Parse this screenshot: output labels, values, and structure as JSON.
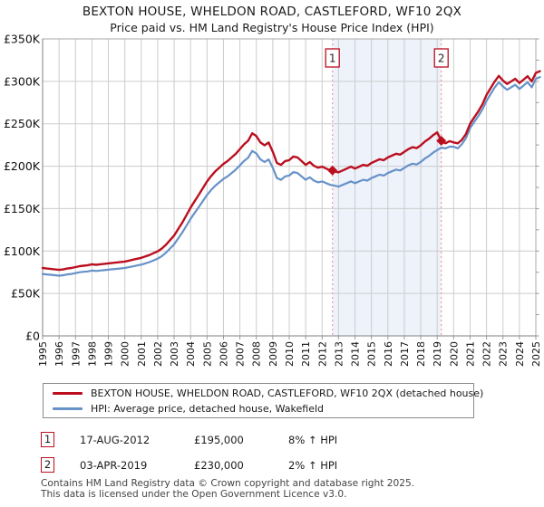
{
  "title": "BEXTON HOUSE, WHELDON ROAD, CASTLEFORD, WF10 2QX",
  "subtitle": "Price paid vs. HM Land Registry's House Price Index (HPI)",
  "colors": {
    "price_line": "#bb0f1f",
    "hpi_line": "#6692c8",
    "marker_dotted_line": "#f59a9a",
    "marker_box_border": "#bb0f1f",
    "shaded_region": "#edf2fb",
    "gridline": "#cccccc",
    "plot_border": "#aaaaaa",
    "axis_line": "#808080",
    "footer_text": "#444444"
  },
  "chart_data": {
    "type": "line",
    "title": "BEXTON HOUSE, WHELDON ROAD, CASTLEFORD, WF10 2QX",
    "subtitle": "Price paid vs. HM Land Registry's House Price Index (HPI)",
    "xlabel": "",
    "ylabel": "",
    "x_start": 1995,
    "x_step": 0.25,
    "x_years": [
      1995,
      1996,
      1997,
      1998,
      1999,
      2000,
      2001,
      2002,
      2003,
      2004,
      2005,
      2006,
      2007,
      2008,
      2009,
      2010,
      2011,
      2012,
      2013,
      2014,
      2015,
      2016,
      2017,
      2018,
      2019,
      2020,
      2021,
      2022,
      2023,
      2024,
      2025
    ],
    "xlim": [
      1995,
      2025
    ],
    "y_axis": {
      "min": 0,
      "max": 350000,
      "tick_step": 50000,
      "minor_tick_step": 25000,
      "tick_labels": [
        "£0",
        "£50K",
        "£100K",
        "£150K",
        "£200K",
        "£250K",
        "£300K",
        "£350K"
      ]
    },
    "grid": true,
    "legend_position": "bottom",
    "values_unit": "GBP thousands",
    "series": [
      {
        "name": "HPI: Average price, detached house, Wakefield",
        "color": "#6692c8",
        "values": [
          73,
          72.5,
          72,
          71.5,
          71,
          71.5,
          72.5,
          73,
          74,
          75,
          75.5,
          76,
          77,
          76.5,
          77,
          77.5,
          78,
          78.5,
          79,
          79.5,
          80,
          81,
          82,
          83,
          84,
          85.5,
          87,
          89,
          91,
          94,
          98,
          103,
          108,
          115,
          122,
          130,
          138,
          145,
          152,
          159,
          166,
          172,
          177,
          181,
          185,
          188,
          192,
          196,
          201,
          206,
          210,
          218,
          215,
          208,
          205,
          208,
          198,
          186,
          184,
          188,
          189,
          193,
          192,
          188,
          184,
          187,
          183,
          181,
          182,
          180,
          178,
          177,
          176,
          178,
          180,
          182,
          180,
          182,
          184,
          183,
          186,
          188,
          190,
          189,
          192,
          194,
          196,
          195,
          198,
          201,
          203,
          202,
          205,
          209,
          212,
          216,
          219,
          222,
          221,
          223,
          223,
          221,
          226,
          233,
          245,
          252,
          259,
          267,
          277,
          285,
          293,
          299,
          294,
          290,
          293,
          296,
          291,
          295,
          299,
          293,
          303,
          305
        ]
      },
      {
        "name": "BEXTON HOUSE, WHELDON ROAD, CASTLEFORD, WF10 2QX (detached house)",
        "color": "#bb0f1f",
        "values": [
          80,
          79.4,
          78.9,
          78.3,
          77.8,
          78.3,
          79.4,
          80,
          81.1,
          82.2,
          82.7,
          83.3,
          84.4,
          83.8,
          84.4,
          84.9,
          85.5,
          86,
          86.5,
          87.1,
          87.6,
          88.7,
          89.8,
          90.9,
          92,
          93.7,
          95.3,
          97.5,
          99.7,
          103,
          107.4,
          112.8,
          118.3,
          126,
          133.6,
          142.4,
          151.2,
          158.8,
          166.5,
          174.2,
          181.9,
          188.4,
          193.9,
          198.3,
          202.7,
          206,
          210.3,
          214.7,
          220.2,
          225.7,
          230.1,
          238.8,
          235.5,
          227.9,
          224.6,
          227.9,
          216.9,
          203.8,
          201.6,
          206,
          207.1,
          211.4,
          210.3,
          206,
          201.6,
          204.9,
          200.5,
          198.3,
          199.4,
          197.2,
          195,
          193.9,
          192.8,
          195,
          197.2,
          199.4,
          197.2,
          199.4,
          201.6,
          200.5,
          203.8,
          206,
          208.2,
          207.1,
          210.3,
          212.5,
          214.7,
          213.6,
          216.9,
          220.2,
          222.4,
          221.3,
          224.6,
          229,
          232.3,
          236.6,
          239.9,
          230,
          227,
          229.5,
          228,
          227,
          231,
          238,
          250,
          257.5,
          264.5,
          273,
          284,
          292,
          300,
          306.5,
          301,
          297,
          300,
          303,
          298,
          302,
          306,
          300,
          310,
          312
        ]
      }
    ],
    "shaded_region": {
      "from_x": 2012.63,
      "to_x": 2019.25
    },
    "markers": [
      {
        "label": "1",
        "x": 2012.63,
        "value": 195000
      },
      {
        "label": "2",
        "x": 2019.25,
        "value": 230000
      }
    ]
  },
  "legend": {
    "items": [
      {
        "label": "BEXTON HOUSE, WHELDON ROAD, CASTLEFORD, WF10 2QX (detached house)",
        "color": "#bb0f1f"
      },
      {
        "label": "HPI: Average price, detached house, Wakefield",
        "color": "#6692c8"
      }
    ]
  },
  "annotations": [
    {
      "num": "1",
      "date": "17-AUG-2012",
      "price": "£195,000",
      "hpi_delta": "8% ↑ HPI"
    },
    {
      "num": "2",
      "date": "03-APR-2019",
      "price": "£230,000",
      "hpi_delta": "2% ↑ HPI"
    }
  ],
  "footer": {
    "line1": "Contains HM Land Registry data © Crown copyright and database right 2025.",
    "line2": "This data is licensed under the Open Government Licence v3.0."
  }
}
